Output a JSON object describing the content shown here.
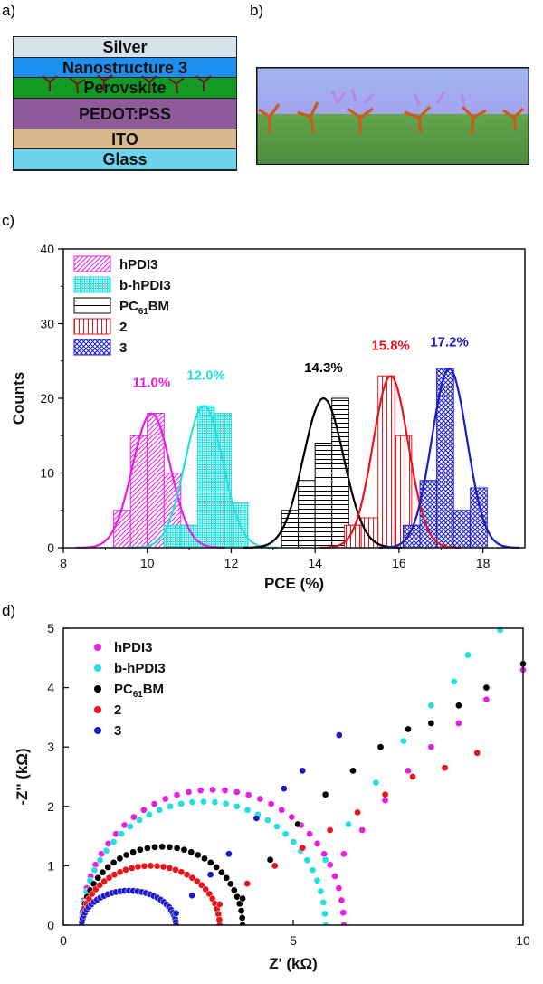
{
  "panels": {
    "a": "a)",
    "b": "b)",
    "c": "c)",
    "d": "d)"
  },
  "stack_layers": [
    {
      "label": "Silver",
      "color": "#d6e3ea"
    },
    {
      "label": "Nanostructure 3",
      "color": "#1c8ff0"
    },
    {
      "label": "Perovskite",
      "color": "#149a24"
    },
    {
      "label": "PEDOT:PSS",
      "color": "#8f5a9a"
    },
    {
      "label": "ITO",
      "color": "#d9b88e"
    },
    {
      "label": "Glass",
      "color": "#6fd3ec"
    }
  ],
  "colors": {
    "hPDI3": "#e81fe0",
    "b-hPDI3": "#22e0e0",
    "PC61BM": "#000000",
    "2": "#e8141c",
    "3": "#1a1ac8"
  },
  "chart_data": [
    {
      "type": "bar",
      "xlabel": "PCE (%)",
      "ylabel": "Counts",
      "xlim": [
        8,
        19
      ],
      "ylim": [
        0,
        40
      ],
      "xticks": [
        8,
        10,
        12,
        14,
        16,
        18
      ],
      "yticks": [
        0,
        10,
        20,
        30,
        40
      ],
      "legend_position": "top-left",
      "series": [
        {
          "name": "hPDI3",
          "legend": "hPDI3",
          "pattern": "diag",
          "bins": [
            [
              9.4,
              5
            ],
            [
              9.8,
              15
            ],
            [
              10.2,
              18
            ],
            [
              10.6,
              10
            ],
            [
              11.0,
              3
            ]
          ],
          "fit_mean": 10.1,
          "fit_sd": 0.45,
          "fit_peak": 18,
          "annotation": "11.0%",
          "annotation_at": [
            10.1,
            21.5
          ]
        },
        {
          "name": "b-hPDI3",
          "legend": "b-hPDI3",
          "pattern": "grid",
          "bins": [
            [
              10.6,
              3
            ],
            [
              11.0,
              3
            ],
            [
              11.4,
              19
            ],
            [
              11.8,
              18
            ],
            [
              12.2,
              6
            ]
          ],
          "fit_mean": 11.35,
          "fit_sd": 0.45,
          "fit_peak": 19,
          "annotation": "12.0%",
          "annotation_at": [
            11.4,
            22.5
          ]
        },
        {
          "name": "PC61BM",
          "legend": "PC",
          "legend_sub": "61",
          "legend_suffix": "BM",
          "pattern": "hlines",
          "bins": [
            [
              13.4,
              5
            ],
            [
              13.8,
              9
            ],
            [
              14.2,
              14
            ],
            [
              14.6,
              20
            ],
            [
              15.0,
              3
            ]
          ],
          "fit_mean": 14.2,
          "fit_sd": 0.48,
          "fit_peak": 20,
          "annotation": "14.3%",
          "annotation_at": [
            14.2,
            23.5
          ]
        },
        {
          "name": "2",
          "legend": "2",
          "pattern": "vlines",
          "bins": [
            [
              14.9,
              3
            ],
            [
              15.3,
              4
            ],
            [
              15.7,
              23
            ],
            [
              16.1,
              15
            ],
            [
              16.5,
              3
            ]
          ],
          "fit_mean": 15.8,
          "fit_sd": 0.42,
          "fit_peak": 23,
          "annotation": "15.8%",
          "annotation_at": [
            15.8,
            26.5
          ]
        },
        {
          "name": "3",
          "legend": "3",
          "pattern": "cross",
          "bins": [
            [
              16.3,
              3
            ],
            [
              16.7,
              9
            ],
            [
              17.1,
              24
            ],
            [
              17.5,
              5
            ],
            [
              17.9,
              8
            ]
          ],
          "fit_mean": 17.2,
          "fit_sd": 0.42,
          "fit_peak": 24,
          "annotation": "17.2%",
          "annotation_at": [
            17.2,
            27.0
          ]
        }
      ]
    },
    {
      "type": "scatter",
      "xlabel": "Z' (kΩ)",
      "ylabel": "-Z'' (kΩ)",
      "xlim": [
        0,
        10
      ],
      "ylim": [
        0,
        5
      ],
      "xticks": [
        0,
        5,
        10
      ],
      "yticks": [
        0,
        1,
        2,
        3,
        4,
        5
      ],
      "legend_position": "top-left",
      "series": [
        {
          "name": "hPDI3",
          "legend": "hPDI3",
          "arc": [
            0.4,
            6.1,
            2.28
          ],
          "tail": [
            [
              6.1,
              1.2
            ],
            [
              6.5,
              1.6
            ],
            [
              7.0,
              2.1
            ],
            [
              7.5,
              2.6
            ],
            [
              8.0,
              3.0
            ],
            [
              8.6,
              3.4
            ],
            [
              9.2,
              3.8
            ],
            [
              10.0,
              4.3
            ]
          ]
        },
        {
          "name": "b-hPDI3",
          "legend": "b-hPDI3",
          "arc": [
            0.4,
            5.7,
            2.08
          ],
          "tail": [
            [
              5.7,
              1.1
            ],
            [
              6.2,
              1.7
            ],
            [
              6.8,
              2.4
            ],
            [
              7.4,
              3.1
            ],
            [
              8.0,
              3.7
            ],
            [
              8.5,
              4.1
            ],
            [
              8.8,
              4.55
            ],
            [
              9.5,
              4.97
            ]
          ]
        },
        {
          "name": "PC61BM",
          "legend": "PC",
          "legend_sub": "61",
          "legend_suffix": "BM",
          "arc": [
            0.4,
            3.9,
            1.32
          ],
          "tail": [
            [
              3.9,
              0.45
            ],
            [
              4.5,
              1.1
            ],
            [
              5.1,
              1.7
            ],
            [
              5.7,
              2.2
            ],
            [
              6.3,
              2.6
            ],
            [
              6.9,
              3.0
            ],
            [
              7.5,
              3.3
            ],
            [
              8.0,
              3.4
            ],
            [
              8.6,
              3.7
            ],
            [
              9.2,
              4.0
            ],
            [
              10.0,
              4.4
            ]
          ]
        },
        {
          "name": "2",
          "legend": "2",
          "arc": [
            0.4,
            3.4,
            1.0
          ],
          "tail": [
            [
              3.4,
              0.35
            ],
            [
              4.0,
              0.7
            ],
            [
              4.6,
              1.0
            ],
            [
              5.2,
              1.3
            ],
            [
              5.8,
              1.6
            ],
            [
              6.4,
              1.9
            ],
            [
              7.0,
              2.2
            ],
            [
              7.6,
              2.5
            ],
            [
              8.3,
              2.65
            ],
            [
              9.0,
              2.9
            ]
          ]
        },
        {
          "name": "3",
          "legend": "3",
          "arc": [
            0.4,
            2.45,
            0.58
          ],
          "tail": [
            [
              2.45,
              0.2
            ],
            [
              2.8,
              0.5
            ],
            [
              3.2,
              0.85
            ],
            [
              3.6,
              1.2
            ],
            [
              4.2,
              1.8
            ],
            [
              4.8,
              2.3
            ],
            [
              5.2,
              2.6
            ],
            [
              6.0,
              3.2
            ]
          ]
        }
      ]
    }
  ]
}
